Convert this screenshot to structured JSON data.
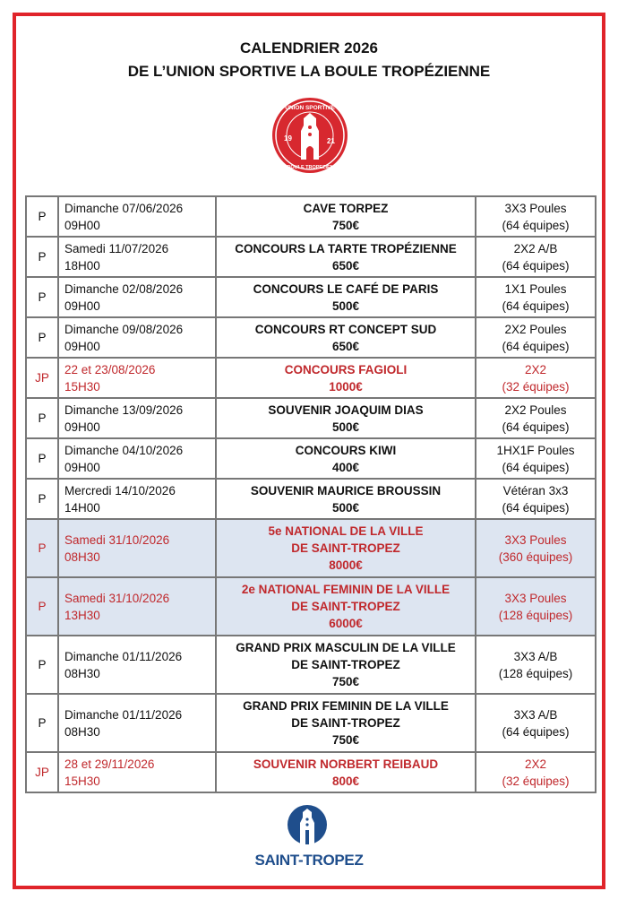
{
  "header": {
    "line1": "CALENDRIER 2026",
    "line2": "DE L’UNION SPORTIVE LA BOULE TROPÉZIENNE"
  },
  "logo": {
    "text_top": "UNION SPORTIVE",
    "text_bottom": "LA BOULE TROPEZIENNE",
    "year_left": "19",
    "year_right": "21",
    "color": "#d7282f"
  },
  "rows": [
    {
      "cat": "P",
      "date": "Dimanche 07/06/2026",
      "time": "09H00",
      "event": [
        "CAVE TORPEZ"
      ],
      "prize": "750€",
      "format": "3X3 Poules",
      "teams": "(64 équipes)",
      "style": "normal"
    },
    {
      "cat": "P",
      "date": "Samedi 11/07/2026",
      "time": "18H00",
      "event": [
        "CONCOURS LA TARTE TROPÉZIENNE"
      ],
      "prize": "650€",
      "format": "2X2 A/B",
      "teams": "(64 équipes)",
      "style": "normal"
    },
    {
      "cat": "P",
      "date": "Dimanche 02/08/2026",
      "time": "09H00",
      "event": [
        "CONCOURS LE CAFÉ DE PARIS"
      ],
      "prize": "500€",
      "format": "1X1 Poules",
      "teams": "(64 équipes)",
      "style": "normal"
    },
    {
      "cat": "P",
      "date": "Dimanche 09/08/2026",
      "time": "09H00",
      "event": [
        "CONCOURS RT CONCEPT SUD"
      ],
      "prize": "650€",
      "format": "2X2 Poules",
      "teams": "(64 équipes)",
      "style": "normal"
    },
    {
      "cat": "JP",
      "date": "22 et 23/08/2026",
      "time": "15H30",
      "event": [
        "CONCOURS FAGIOLI"
      ],
      "prize": "1000€",
      "format": "2X2",
      "teams": "(32 équipes)",
      "style": "red"
    },
    {
      "cat": "P",
      "date": "Dimanche 13/09/2026",
      "time": "09H00",
      "event": [
        "SOUVENIR JOAQUIM DIAS"
      ],
      "prize": "500€",
      "format": "2X2 Poules",
      "teams": "(64 équipes)",
      "style": "normal"
    },
    {
      "cat": "P",
      "date": "Dimanche 04/10/2026",
      "time": "09H00",
      "event": [
        "CONCOURS KIWI"
      ],
      "prize": "400€",
      "format": "1HX1F Poules",
      "teams": "(64 équipes)",
      "style": "normal"
    },
    {
      "cat": "P",
      "date": "Mercredi 14/10/2026",
      "time": "14H00",
      "event": [
        "SOUVENIR MAURICE BROUSSIN"
      ],
      "prize": "500€",
      "format": "Vétéran 3x3",
      "teams": "(64 équipes)",
      "style": "normal"
    },
    {
      "cat": "P",
      "date": "Samedi 31/10/2026",
      "time": "08H30",
      "event": [
        "5e NATIONAL DE LA VILLE",
        "DE SAINT-TROPEZ"
      ],
      "prize": "8000€",
      "format": "3X3 Poules",
      "teams": "(360 équipes)",
      "style": "red blue"
    },
    {
      "cat": "P",
      "date": "Samedi 31/10/2026",
      "time": "13H30",
      "event": [
        "2e NATIONAL FEMININ DE LA VILLE",
        "DE SAINT-TROPEZ"
      ],
      "prize": "6000€",
      "format": "3X3 Poules",
      "teams": "(128 équipes)",
      "style": "red blue"
    },
    {
      "cat": "P",
      "date": "Dimanche 01/11/2026",
      "time": "08H30",
      "event": [
        "GRAND PRIX MASCULIN DE LA VILLE",
        "DE SAINT-TROPEZ"
      ],
      "prize": "750€",
      "format": "3X3 A/B",
      "teams": "(128 équipes)",
      "style": "normal"
    },
    {
      "cat": "P",
      "date": "Dimanche 01/11/2026",
      "time": "08H30",
      "event": [
        "GRAND PRIX FEMININ DE LA VILLE",
        "DE SAINT-TROPEZ"
      ],
      "prize": "750€",
      "format": "3X3 A/B",
      "teams": "(64 équipes)",
      "style": "normal"
    },
    {
      "cat": "JP",
      "date": "28 et 29/11/2026",
      "time": "15H30",
      "event": [
        "SOUVENIR NORBERT REIBAUD"
      ],
      "prize": "800€",
      "format": "2X2",
      "teams": "(32 équipes)",
      "style": "red"
    }
  ],
  "footer": {
    "town": "SAINT-TROPEZ",
    "color": "#1f4e8c"
  }
}
